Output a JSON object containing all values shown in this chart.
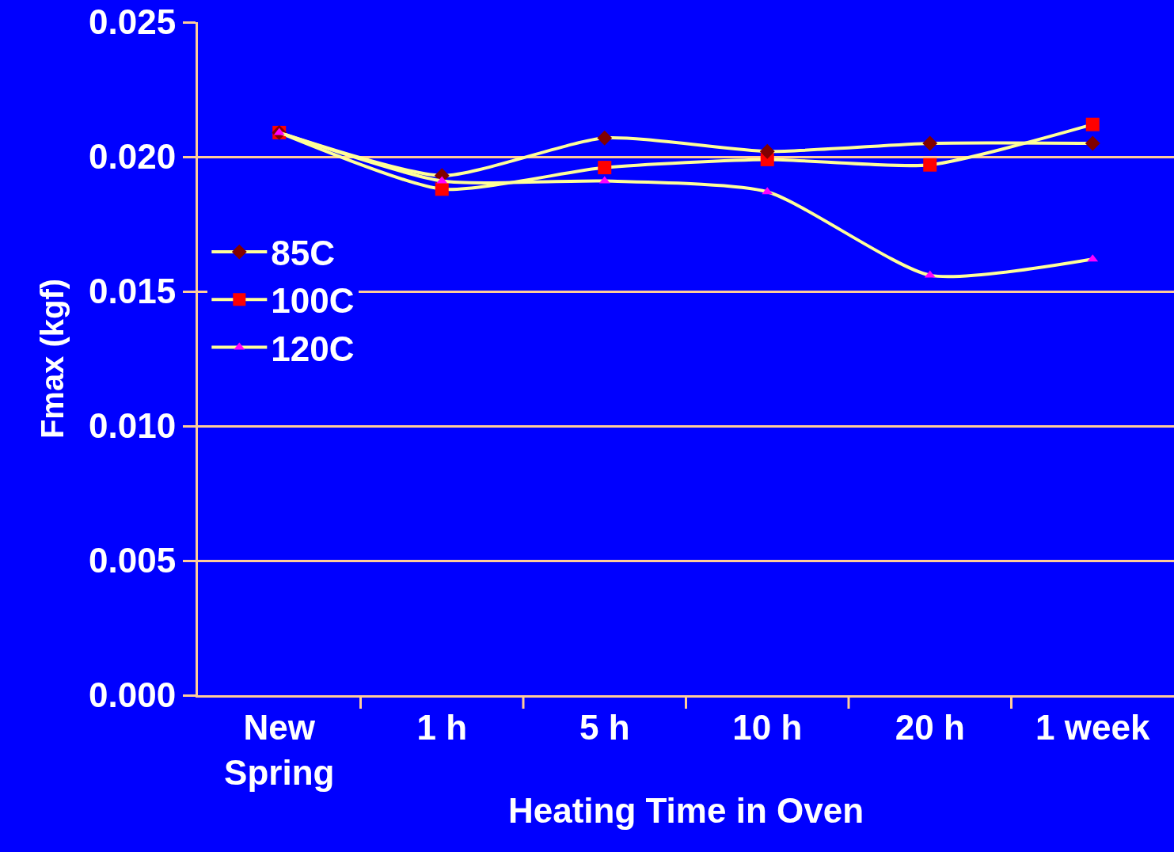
{
  "chart_data": {
    "type": "line",
    "xlabel": "Heating Time in Oven",
    "ylabel": "Fmax (kgf)",
    "categories": [
      "New\nSpring",
      "1 h",
      "5 h",
      "10 h",
      "20 h",
      "1 week"
    ],
    "series": [
      {
        "name": "85C",
        "color": "#800000",
        "marker": "diamond",
        "values": [
          0.0209,
          0.0193,
          0.0207,
          0.0202,
          0.0205,
          0.0205
        ]
      },
      {
        "name": "100C",
        "color": "#ff0000",
        "marker": "square",
        "values": [
          0.0209,
          0.0188,
          0.0196,
          0.0199,
          0.0197,
          0.0212
        ]
      },
      {
        "name": "120C",
        "color": "#ff00ff",
        "marker": "triangle",
        "values": [
          0.0209,
          0.0191,
          0.0191,
          0.0187,
          0.0156,
          0.0162
        ]
      }
    ],
    "ylim": [
      0,
      0.025
    ],
    "yticks": [
      {
        "value": 0,
        "label": "0.000"
      },
      {
        "value": 0.005,
        "label": "0.005"
      },
      {
        "value": 0.01,
        "label": "0.010"
      },
      {
        "value": 0.015,
        "label": "0.015"
      },
      {
        "value": 0.02,
        "label": "0.020"
      },
      {
        "value": 0.025,
        "label": "0.025"
      }
    ],
    "grid": "y",
    "legend": "top left",
    "line_style": "solid"
  }
}
